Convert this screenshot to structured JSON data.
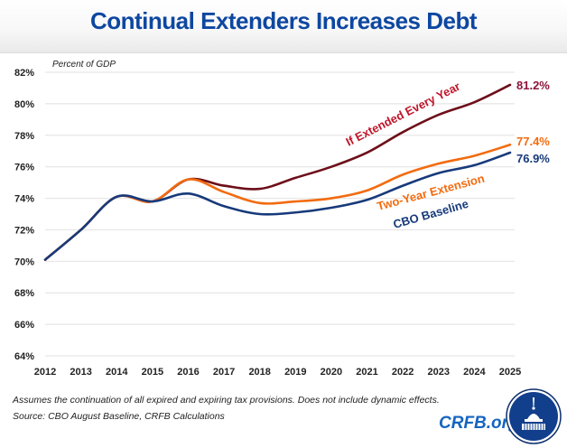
{
  "header": {
    "title": "Continual Extenders Increases Debt"
  },
  "footer": {
    "note": "Assumes the continuation of all expired and expiring tax provisions. Does not include dynamic effects.",
    "source": "Source: CBO August Baseline, CRFB Calculations",
    "brand": "CRFB.org",
    "logo_icon": "capitol-dome-seal-icon"
  },
  "colors": {
    "title": "#0d47a1",
    "extended_every_year": "#6d0f1a",
    "extended_label": "#c0152a",
    "two_year": "#f26b0f",
    "baseline": "#173a7a",
    "grid": "#e6e6e6"
  },
  "chart_data": {
    "type": "line",
    "title": "Continual Extenders Increases Debt",
    "ylabel": "Percent of GDP",
    "xlabel": "",
    "x": [
      2012,
      2013,
      2014,
      2015,
      2016,
      2017,
      2018,
      2019,
      2020,
      2021,
      2022,
      2023,
      2024,
      2025
    ],
    "x_tick_labels": [
      "2012",
      "2013",
      "2014",
      "2015",
      "2016",
      "2017",
      "2018",
      "2019",
      "2020",
      "2021",
      "2022",
      "2023",
      "2024",
      "2025"
    ],
    "ylim": [
      64,
      82
    ],
    "y_ticks": [
      64,
      66,
      68,
      70,
      72,
      74,
      76,
      78,
      80,
      82
    ],
    "y_tick_labels": [
      "64%",
      "66%",
      "68%",
      "70%",
      "72%",
      "74%",
      "76%",
      "78%",
      "80%",
      "82%"
    ],
    "grid": true,
    "legend": "inline-labels",
    "series": [
      {
        "name": "If Extended Every Year",
        "end_label": "81.2%",
        "values": [
          70.1,
          72.0,
          74.1,
          73.8,
          75.2,
          74.8,
          74.6,
          75.3,
          76.0,
          76.9,
          78.2,
          79.3,
          80.1,
          81.2
        ]
      },
      {
        "name": "Two-Year Extension",
        "end_label": "77.4%",
        "values": [
          70.1,
          72.0,
          74.1,
          73.8,
          75.2,
          74.4,
          73.7,
          73.8,
          74.0,
          74.5,
          75.5,
          76.2,
          76.7,
          77.4
        ]
      },
      {
        "name": "CBO Baseline",
        "end_label": "76.9%",
        "values": [
          70.1,
          72.0,
          74.1,
          73.8,
          74.3,
          73.5,
          73.0,
          73.1,
          73.4,
          73.9,
          74.8,
          75.6,
          76.1,
          76.9
        ]
      }
    ]
  }
}
